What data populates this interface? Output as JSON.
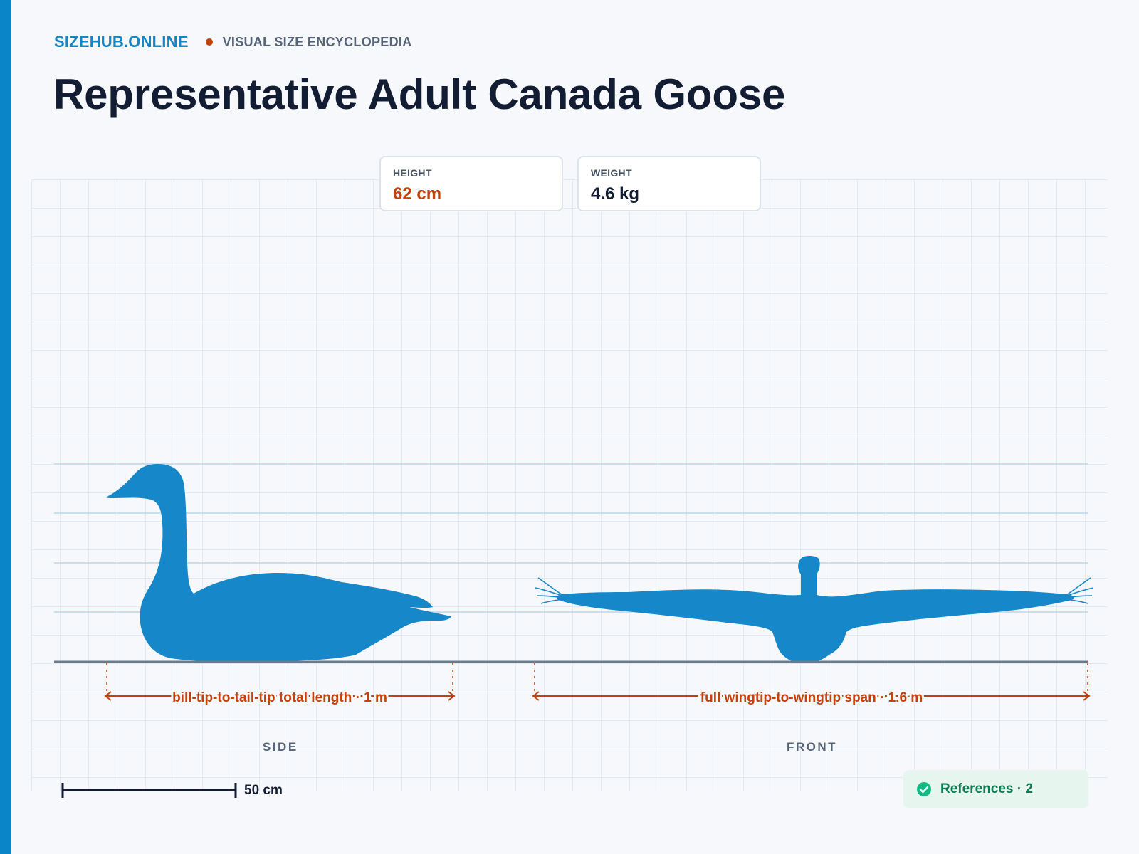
{
  "header": {
    "brand": "SIZEHUB.ONLINE",
    "tagline": "VISUAL SIZE ENCYCLOPEDIA",
    "title": "Representative Adult Canada Goose"
  },
  "stats": [
    {
      "label": "HEIGHT",
      "value": "62 cm",
      "color": "#c2410c"
    },
    {
      "label": "WEIGHT",
      "value": "4.6 kg",
      "color": "#121d33"
    }
  ],
  "measurements": {
    "length": "bill-tip-to-tail-tip total length · 1 m",
    "span": "full wingtip-to-wingtip span · 1.6 m"
  },
  "views": {
    "side": "SIDE",
    "front": "FRONT"
  },
  "scale_bar": {
    "label": "50 cm"
  },
  "references": {
    "label": "References · 2",
    "icon": "check-circle-icon"
  },
  "colors": {
    "silhouette": "#1687c9",
    "measure": "#c2410c",
    "accent": "#0a86c8"
  }
}
